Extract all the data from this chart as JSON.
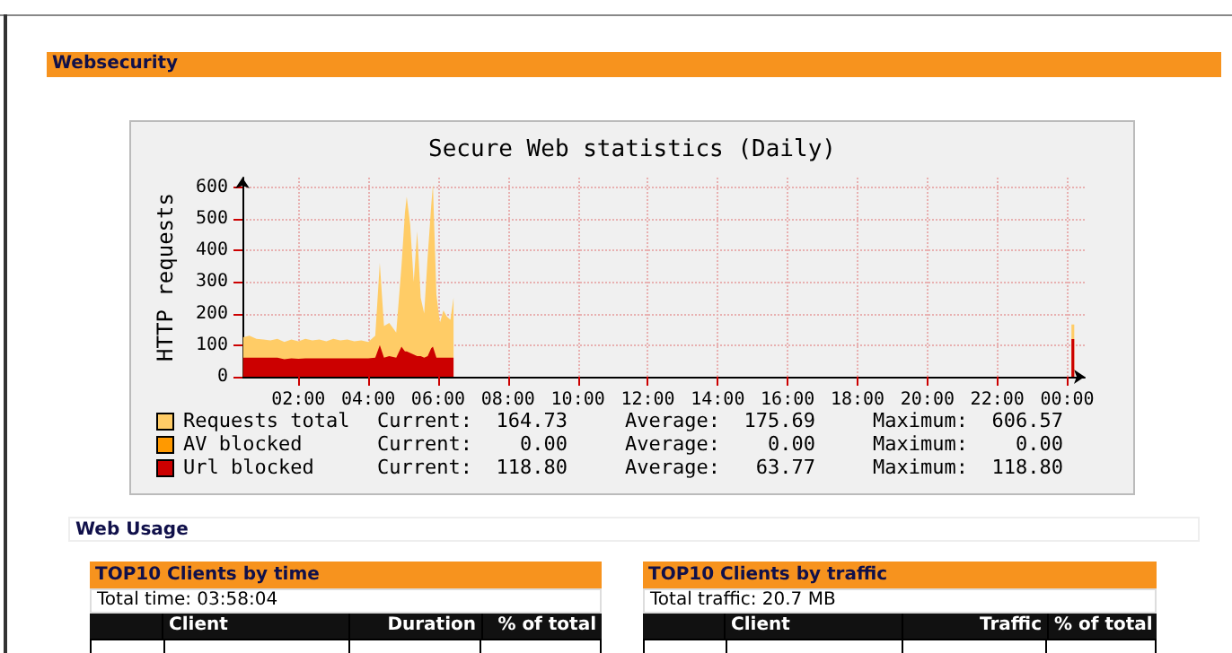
{
  "chart_data": {
    "type": "area",
    "title": "Secure Web statistics (Daily)",
    "ylabel": "HTTP requests",
    "x": [
      0.42,
      0.6,
      0.8,
      1.0,
      1.2,
      1.4,
      1.6,
      1.8,
      2.0,
      2.2,
      2.4,
      2.6,
      2.8,
      3.0,
      3.2,
      3.4,
      3.6,
      3.8,
      4.0,
      4.2,
      4.33,
      4.45,
      4.6,
      4.8,
      4.95,
      5.05,
      5.1,
      5.2,
      5.3,
      5.4,
      5.5,
      5.6,
      5.7,
      5.8,
      5.85,
      5.95,
      6.05,
      6.15,
      6.25,
      6.35,
      6.44,
      6.5,
      24.12,
      24.2
    ],
    "series": [
      {
        "name": "Requests total",
        "color": "#ffcc66",
        "values": [
          125,
          130,
          120,
          118,
          115,
          120,
          110,
          118,
          112,
          120,
          115,
          118,
          112,
          120,
          115,
          118,
          112,
          115,
          110,
          130,
          360,
          160,
          170,
          140,
          350,
          520,
          570,
          480,
          300,
          460,
          250,
          200,
          380,
          540,
          607,
          260,
          170,
          210,
          190,
          180,
          250,
          null,
          165,
          165
        ]
      },
      {
        "name": "AV blocked",
        "color": "#ff9900",
        "values": [
          null,
          null,
          null,
          null,
          null,
          null,
          null,
          null,
          null,
          null,
          null,
          null,
          null,
          null,
          null,
          null,
          null,
          null,
          null,
          null,
          null,
          null,
          null,
          null,
          null,
          null,
          null,
          null,
          null,
          null,
          null,
          null,
          null,
          null,
          null,
          null,
          null,
          null,
          null,
          null,
          null,
          null,
          null,
          null
        ]
      },
      {
        "name": "Url blocked",
        "color": "#cc0000",
        "values": [
          60,
          60,
          60,
          60,
          60,
          60,
          55,
          58,
          57,
          58,
          58,
          58,
          58,
          58,
          58,
          58,
          58,
          58,
          58,
          60,
          100,
          60,
          65,
          60,
          95,
          80,
          80,
          75,
          70,
          65,
          65,
          60,
          65,
          90,
          95,
          60,
          60,
          60,
          60,
          60,
          60,
          null,
          119,
          119
        ]
      }
    ],
    "xlim": [
      0.4,
      24.5
    ],
    "xticks": [
      {
        "value": 2,
        "label": "02:00"
      },
      {
        "value": 4,
        "label": "04:00"
      },
      {
        "value": 6,
        "label": "06:00"
      },
      {
        "value": 8,
        "label": "08:00"
      },
      {
        "value": 10,
        "label": "10:00"
      },
      {
        "value": 12,
        "label": "12:00"
      },
      {
        "value": 14,
        "label": "14:00"
      },
      {
        "value": 16,
        "label": "16:00"
      },
      {
        "value": 18,
        "label": "18:00"
      },
      {
        "value": 20,
        "label": "20:00"
      },
      {
        "value": 22,
        "label": "22:00"
      },
      {
        "value": 24,
        "label": "00:00"
      }
    ],
    "ylim": [
      0,
      630
    ],
    "yticks": [
      0,
      100,
      200,
      300,
      400,
      500,
      600
    ],
    "grid": true,
    "legend": "bottom left",
    "annotations": [
      "Websecurity",
      "Current:  164.73",
      "Average:  175.69",
      "Maximum:  606.57",
      "Current:    0.00",
      "Average:    0.00",
      "Maximum:    0.00",
      "Current:  118.80",
      "Average:   63.77",
      "Maximum:  118.80",
      "Web Usage",
      "TOP10 Clients by time",
      "Total time:  03:58:04",
      "Client",
      "Duration",
      "% of total",
      "TOP10 Clients by traffic",
      "Total traffic:  20.7 MB",
      "Client",
      "Traffic",
      "% of total"
    ]
  }
}
